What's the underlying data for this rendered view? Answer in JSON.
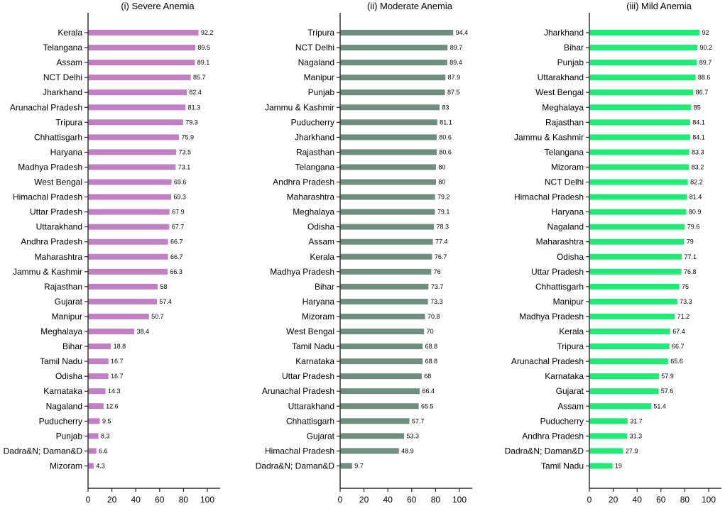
{
  "chart_data": [
    {
      "type": "bar",
      "orientation": "horizontal",
      "title": "(i) Severe Anemia",
      "color": "#c17fc4",
      "xlim": [
        0,
        110
      ],
      "xticks": [
        "0",
        "20",
        "40",
        "60",
        "80",
        "100"
      ],
      "categories": [
        "Kerala",
        "Telangana",
        "Assam",
        "NCT Delhi",
        "Jharkhand",
        "Arunachal Pradesh",
        "Tripura",
        "Chhattisgarh",
        "Haryana",
        "Madhya Pradesh",
        "West Bengal",
        "Himachal Pradesh",
        "Uttar Pradesh",
        "Uttarakhand",
        "Andhra Pradesh",
        "Maharashtra",
        "Jammu & Kashmir",
        "Rajasthan",
        "Gujarat",
        "Manipur",
        "Meghalaya",
        "Bihar",
        "Tamil Nadu",
        "Odisha",
        "Karnataka",
        "Nagaland",
        "Puducherry",
        "Punjab",
        "Dadra&N; Daman&D",
        "Mizoram"
      ],
      "values": [
        92.2,
        89.5,
        89.1,
        85.7,
        82.4,
        81.3,
        79.3,
        75.9,
        73.5,
        73.1,
        69.6,
        69.3,
        67.9,
        67.7,
        66.7,
        66.7,
        66.3,
        58,
        57.4,
        50.7,
        38.4,
        18.8,
        16.7,
        16.7,
        14.3,
        12.6,
        9.5,
        8.3,
        6.6,
        4.3
      ],
      "labels": [
        "92.2",
        "89.5",
        "89.1",
        "85.7",
        "82.4",
        "81.3",
        "79.3",
        "75.9",
        "73.5",
        "73.1",
        "69.6",
        "69.3",
        "67.9",
        "67.7",
        "66.7",
        "66.7",
        "66.3",
        "58",
        "57.4",
        "50.7",
        "38.4",
        "18.8",
        "16.7",
        "16.7",
        "14.3",
        "12.6",
        "9.5",
        "8.3",
        "6.6",
        "4.3"
      ]
    },
    {
      "type": "bar",
      "orientation": "horizontal",
      "title": "(ii) Moderate Anemia",
      "color": "#6e8e80",
      "xlim": [
        0,
        110
      ],
      "xticks": [
        "0",
        "20",
        "40",
        "60",
        "80",
        "100"
      ],
      "categories": [
        "Tripura",
        "NCT Delhi",
        "Nagaland",
        "Manipur",
        "Punjab",
        "Jammu & Kashmir",
        "Puducherry",
        "Jharkhand",
        "Rajasthan",
        "Telangana",
        "Andhra Pradesh",
        "Maharashtra",
        "Meghalaya",
        "Odisha",
        "Assam",
        "Kerala",
        "Madhya Pradesh",
        "Bihar",
        "Haryana",
        "Mizoram",
        "West Bengal",
        "Tamil Nadu",
        "Karnataka",
        "Uttar Pradesh",
        "Arunachal Pradesh",
        "Uttarakhand",
        "Chhattisgarh",
        "Gujarat",
        "Himachal Pradesh",
        "Dadra&N; Daman&D"
      ],
      "values": [
        94.4,
        89.7,
        89.4,
        87.9,
        87.5,
        83,
        81.1,
        80.6,
        80.6,
        80,
        80,
        79.2,
        79.1,
        78.3,
        77.4,
        76.7,
        76,
        73.7,
        73.3,
        70.8,
        70,
        68.8,
        68.8,
        68,
        66.4,
        65.5,
        57.7,
        53.3,
        48.9,
        9.7
      ],
      "labels": [
        "94.4",
        "89.7",
        "89.4",
        "87.9",
        "87.5",
        "83",
        "81.1",
        "80.6",
        "80.6",
        "80",
        "80",
        "79.2",
        "79.1",
        "78.3",
        "77.4",
        "76.7",
        "76",
        "73.7",
        "73.3",
        "70.8",
        "70",
        "68.8",
        "68.8",
        "68",
        "66.4",
        "65.5",
        "57.7",
        "53.3",
        "48.9",
        "9.7"
      ]
    },
    {
      "type": "bar",
      "orientation": "horizontal",
      "title": "(iii) Mild Anemia",
      "color": "#1fec74",
      "xlim": [
        0,
        110
      ],
      "xticks": [
        "0",
        "20",
        "40",
        "60",
        "80",
        "100"
      ],
      "categories": [
        "Jharkhand",
        "Bihar",
        "Punjab",
        "Uttarakhand",
        "West Bengal",
        "Meghalaya",
        "Rajasthan",
        "Jammu & Kashmir",
        "Telangana",
        "Mizoram",
        "NCT Delhi",
        "Himachal Pradesh",
        "Haryana",
        "Nagaland",
        "Maharashtra",
        "Odisha",
        "Uttar Pradesh",
        "Chhattisgarh",
        "Manipur",
        "Madhya Pradesh",
        "Kerala",
        "Tripura",
        "Arunachal Pradesh",
        "Karnataka",
        "Gujarat",
        "Assam",
        "Puducherry",
        "Andhra Pradesh",
        "Dadra&N; Daman&D",
        "Tamil Nadu"
      ],
      "values": [
        92,
        90.2,
        89.7,
        88.6,
        86.7,
        85,
        84.1,
        84.1,
        83.3,
        83.2,
        82.2,
        81.4,
        80.9,
        79.6,
        79,
        77.1,
        76.8,
        75,
        73.3,
        71.2,
        67.4,
        66.7,
        65.6,
        57.9,
        57.6,
        51.4,
        31.7,
        31.3,
        27.9,
        19
      ],
      "labels": [
        "92",
        "90.2",
        "89.7",
        "88.6",
        "86.7",
        "85",
        "84.1",
        "84.1",
        "83.3",
        "83.2",
        "82.2",
        "81.4",
        "80.9",
        "79.6",
        "79",
        "77.1",
        "76.8",
        "75",
        "73.3",
        "71.2",
        "67.4",
        "66.7",
        "65.6",
        "57.9",
        "57.6",
        "51.4",
        "31.7",
        "31.3",
        "27.9",
        "19"
      ]
    }
  ]
}
